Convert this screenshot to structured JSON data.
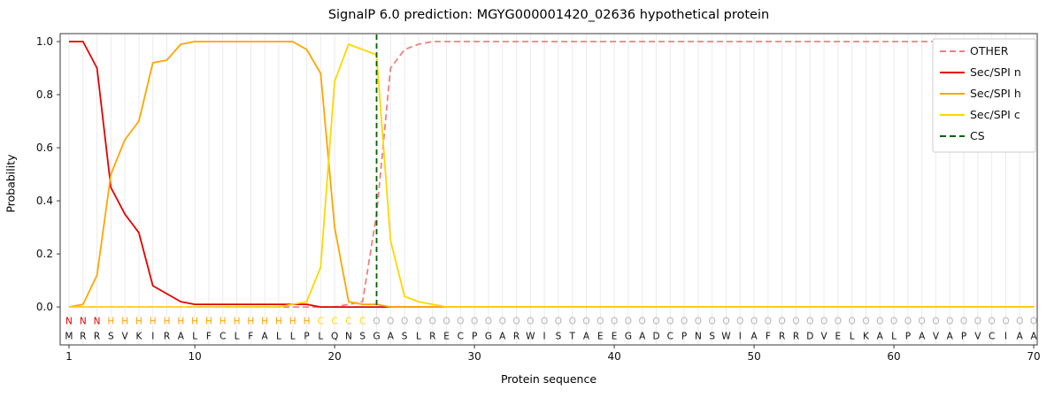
{
  "chart_data": {
    "type": "line",
    "title": "SignalP 6.0 prediction: MGYG000001420_02636 hypothetical protein",
    "xlabel": "Protein sequence",
    "ylabel": "Probability",
    "ylim": [
      0.0,
      1.0
    ],
    "xlim": [
      1,
      70
    ],
    "grid": "vertical-per-residue",
    "legend_position": "upper right",
    "yticks": [
      0.0,
      0.2,
      0.4,
      0.6,
      0.8,
      1.0
    ],
    "xticks": [
      1,
      10,
      20,
      30,
      40,
      50,
      60,
      70
    ],
    "sequence": "MRRSVKIRALFCLFALLPLQNSGASLRECPGARWISTAEEGADCPNSWIAFRRDVELKALPAVAPVCIAA",
    "region_labels": "NNNHHHHHHHHHHHHHHHCCCCOOOOOOOOOOOOOOOOOOOOOOOOOOOOOOOOOOOOOOOOOOOOOOOO",
    "region_colors": {
      "N": "#e50000",
      "H": "#ffa500",
      "C": "#ffd700",
      "O": "#b3b3b3"
    },
    "sequence_color": "#111111",
    "cs": {
      "label": "CS",
      "color": "#006400",
      "position": 23
    },
    "series": [
      {
        "name": "OTHER",
        "color": "#f08080",
        "dash": true,
        "values": [
          0,
          0,
          0,
          0,
          0,
          0,
          0,
          0,
          0,
          0,
          0,
          0,
          0,
          0,
          0,
          0,
          0,
          0,
          0,
          0,
          0.01,
          0.02,
          0.35,
          0.9,
          0.97,
          0.99,
          1,
          1,
          1,
          1,
          1,
          1,
          1,
          1,
          1,
          1,
          1,
          1,
          1,
          1,
          1,
          1,
          1,
          1,
          1,
          1,
          1,
          1,
          1,
          1,
          1,
          1,
          1,
          1,
          1,
          1,
          1,
          1,
          1,
          1,
          1,
          1,
          1,
          1,
          1,
          1,
          1,
          1,
          1,
          1
        ]
      },
      {
        "name": "Sec/SPI n",
        "color": "#e50000",
        "dash": false,
        "values": [
          1,
          1,
          0.9,
          0.45,
          0.35,
          0.28,
          0.08,
          0.05,
          0.02,
          0.01,
          0.01,
          0.01,
          0.01,
          0.01,
          0.01,
          0.01,
          0.01,
          0.01,
          0,
          0,
          0,
          0,
          0,
          0,
          0,
          0,
          0,
          0,
          0,
          0,
          0,
          0,
          0,
          0,
          0,
          0,
          0,
          0,
          0,
          0,
          0,
          0,
          0,
          0,
          0,
          0,
          0,
          0,
          0,
          0,
          0,
          0,
          0,
          0,
          0,
          0,
          0,
          0,
          0,
          0,
          0,
          0,
          0,
          0,
          0,
          0,
          0,
          0,
          0,
          0
        ]
      },
      {
        "name": "Sec/SPI h",
        "color": "#ffa500",
        "dash": false,
        "values": [
          0,
          0.01,
          0.12,
          0.5,
          0.63,
          0.7,
          0.92,
          0.93,
          0.99,
          1,
          1,
          1,
          1,
          1,
          1,
          1,
          1,
          0.97,
          0.88,
          0.3,
          0.02,
          0.01,
          0.01,
          0,
          0,
          0,
          0,
          0,
          0,
          0,
          0,
          0,
          0,
          0,
          0,
          0,
          0,
          0,
          0,
          0,
          0,
          0,
          0,
          0,
          0,
          0,
          0,
          0,
          0,
          0,
          0,
          0,
          0,
          0,
          0,
          0,
          0,
          0,
          0,
          0,
          0,
          0,
          0,
          0,
          0,
          0,
          0,
          0,
          0,
          0
        ]
      },
      {
        "name": "Sec/SPI c",
        "color": "#ffd700",
        "dash": false,
        "values": [
          0,
          0,
          0,
          0,
          0,
          0,
          0,
          0,
          0,
          0,
          0,
          0,
          0,
          0,
          0,
          0,
          0.01,
          0.02,
          0.15,
          0.85,
          0.99,
          0.97,
          0.95,
          0.25,
          0.04,
          0.02,
          0.01,
          0,
          0,
          0,
          0,
          0,
          0,
          0,
          0,
          0,
          0,
          0,
          0,
          0,
          0,
          0,
          0,
          0,
          0,
          0,
          0,
          0,
          0,
          0,
          0,
          0,
          0,
          0,
          0,
          0,
          0,
          0,
          0,
          0,
          0,
          0,
          0,
          0,
          0,
          0,
          0,
          0,
          0,
          0
        ]
      }
    ]
  }
}
